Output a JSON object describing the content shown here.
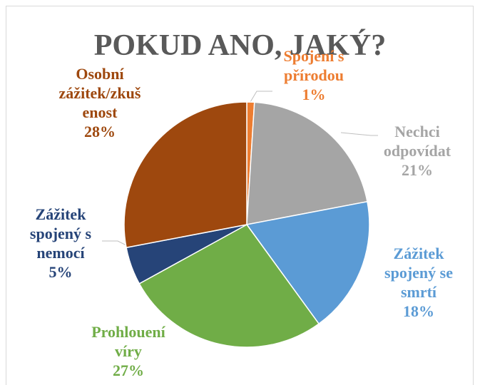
{
  "chart_data": {
    "type": "pie",
    "title": "POKUD ANO, JAKÝ?",
    "categories": [
      "Spojení s přírodou",
      "Nechci odpovídat",
      "Zážitek spojený se smrtí",
      "Prohlouení víry",
      "Zážitek spojený s nemocí",
      "Osobní zážitek/zkušenost"
    ],
    "values": [
      1,
      21,
      18,
      27,
      5,
      28
    ],
    "value_labels": [
      "1%",
      "21%",
      "18%",
      "27%",
      "5%",
      "28%"
    ],
    "colors": [
      "#ed7d31",
      "#a5a5a5",
      "#5b9bd5",
      "#70ad47",
      "#264478",
      "#9e480e"
    ]
  }
}
